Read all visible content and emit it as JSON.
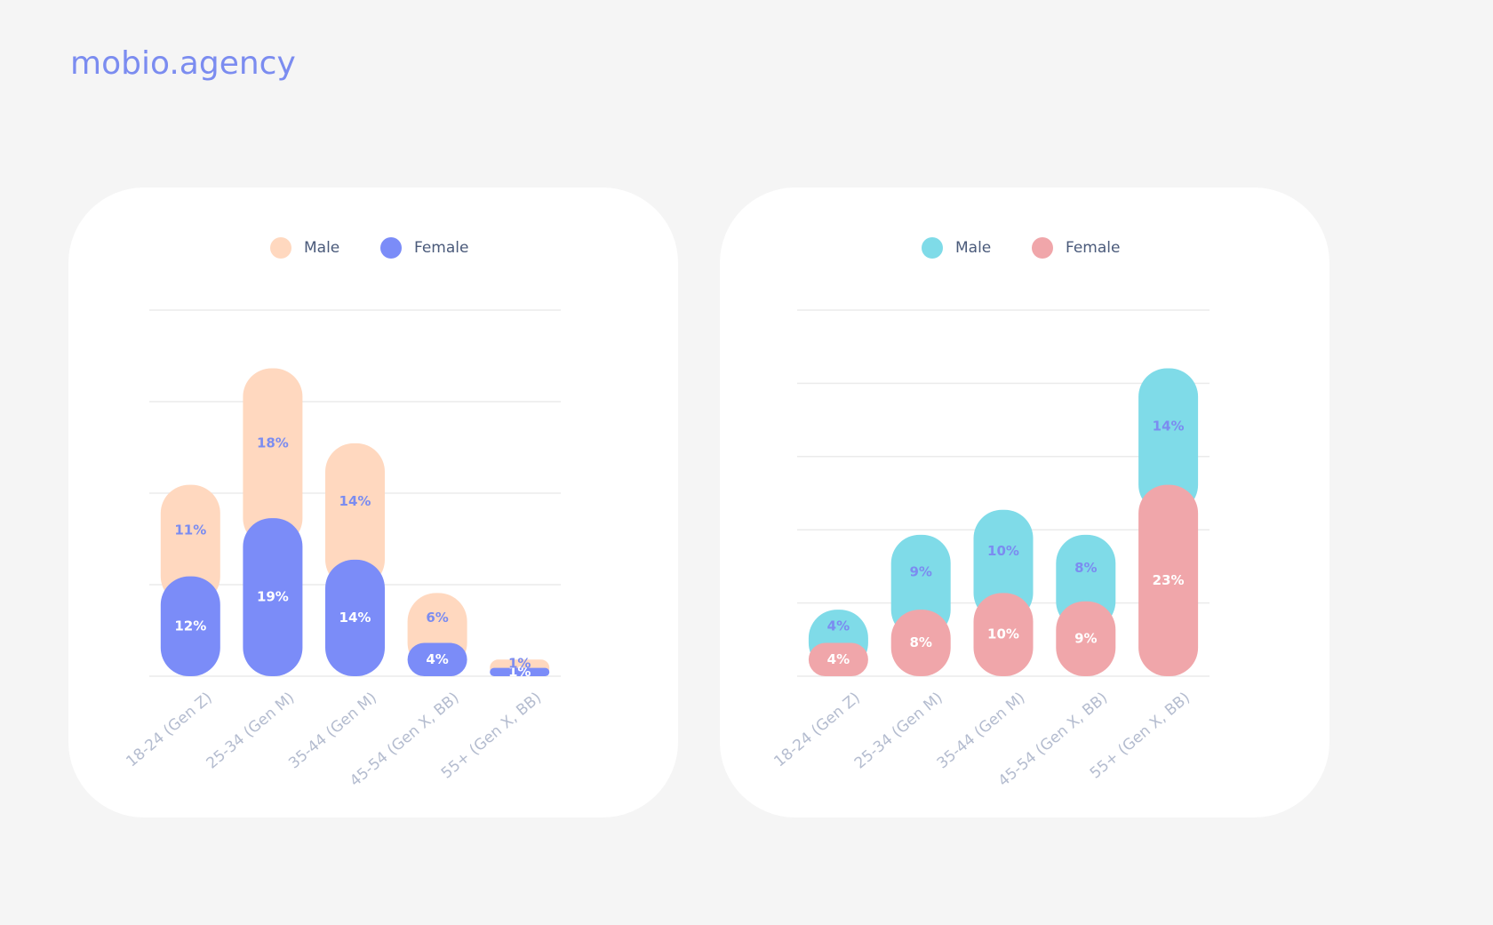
{
  "brand": "mobio.agency",
  "chart_data": [
    {
      "type": "stacked-bar",
      "categories": [
        "18-24 (Gen Z)",
        "25-34 (Gen M)",
        "35-44 (Gen M)",
        "45-54 (Gen X, BB)",
        "55+ (Gen X, BB)"
      ],
      "series": [
        {
          "name": "Female",
          "color": "#7b8cf8",
          "values": [
            12,
            19,
            14,
            4,
            1
          ],
          "value_labels": [
            "12%",
            "19%",
            "14%",
            "4%",
            "1%"
          ]
        },
        {
          "name": "Male",
          "color": "#ffd8bf",
          "values": [
            11,
            18,
            14,
            6,
            1
          ],
          "value_labels": [
            "11%",
            "18%",
            "14%",
            "6%",
            "1%"
          ]
        }
      ],
      "ylim": [
        0,
        44
      ],
      "yticks": [
        0,
        11,
        22,
        33,
        44
      ],
      "grid": true
    },
    {
      "type": "stacked-bar",
      "categories": [
        "18-24 (Gen Z)",
        "25-34 (Gen M)",
        "35-44 (Gen M)",
        "45-54 (Gen X, BB)",
        "55+ (Gen X, BB)"
      ],
      "series": [
        {
          "name": "Female",
          "color": "#f0a6aa",
          "values": [
            4,
            8,
            10,
            9,
            23
          ],
          "value_labels": [
            "4%",
            "8%",
            "10%",
            "9%",
            "23%"
          ]
        },
        {
          "name": "Male",
          "color": "#7fdbe8",
          "values": [
            4,
            9,
            10,
            8,
            14
          ],
          "value_labels": [
            "4%",
            "9%",
            "10%",
            "8%",
            "14%"
          ]
        }
      ],
      "ylim": [
        0,
        44
      ],
      "yticks": [
        0,
        8.8,
        17.6,
        26.4,
        35.2,
        44
      ],
      "grid": true
    }
  ]
}
